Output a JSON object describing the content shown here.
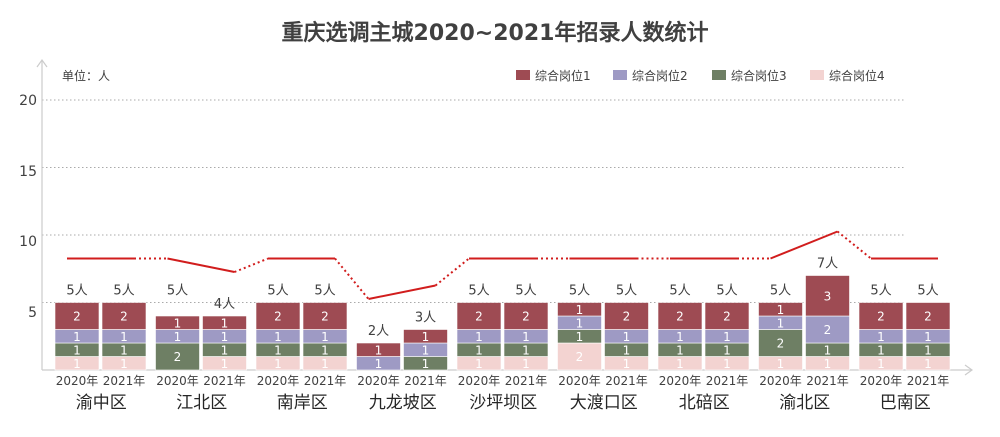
{
  "chart_data": {
    "type": "bar",
    "title": "重庆选调主城2020~2021年招录人数统计",
    "unit_label": "单位：人",
    "yticks": [
      "20",
      "15",
      "10",
      "5"
    ],
    "ylim": [
      0,
      20
    ],
    "grid": true,
    "legend_position": "top-right",
    "colors": {
      "综合岗位1": "#9e4b53",
      "综合岗位2": "#9e9ac4",
      "综合岗位3": "#6e7f64",
      "综合岗位4": "#f3d3d1",
      "line": "#d11d1d",
      "grid": "#aaaaaa"
    },
    "series_order": [
      "综合岗位1",
      "综合岗位2",
      "综合岗位3",
      "综合岗位4"
    ],
    "districts": [
      {
        "name": "渝中区",
        "bars": [
          {
            "year": "2020年",
            "total_label": "5人",
            "total": 5,
            "segments": {
              "综合岗位4": 1,
              "综合岗位3": 1,
              "综合岗位2": 1,
              "综合岗位1": 2
            }
          },
          {
            "year": "2021年",
            "total_label": "5人",
            "total": 5,
            "segments": {
              "综合岗位4": 1,
              "综合岗位3": 1,
              "综合岗位2": 1,
              "综合岗位1": 2
            }
          }
        ]
      },
      {
        "name": "江北区",
        "bars": [
          {
            "year": "2020年",
            "total_label": "5人",
            "total": 5,
            "segments": {
              "综合岗位4": 0,
              "综合岗位3": 2,
              "综合岗位2": 1,
              "综合岗位1": 1
            }
          },
          {
            "year": "2021年",
            "total_label": "4人",
            "total": 4,
            "segments": {
              "综合岗位4": 1,
              "综合岗位3": 1,
              "综合岗位2": 1,
              "综合岗位1": 1
            }
          }
        ]
      },
      {
        "name": "南岸区",
        "bars": [
          {
            "year": "2020年",
            "total_label": "5人",
            "total": 5,
            "segments": {
              "综合岗位4": 1,
              "综合岗位3": 1,
              "综合岗位2": 1,
              "综合岗位1": 2
            }
          },
          {
            "year": "2021年",
            "total_label": "5人",
            "total": 5,
            "segments": {
              "综合岗位4": 1,
              "综合岗位3": 1,
              "综合岗位2": 1,
              "综合岗位1": 2
            }
          }
        ]
      },
      {
        "name": "九龙坡区",
        "bars": [
          {
            "year": "2020年",
            "total_label": "2人",
            "total": 2,
            "segments": {
              "综合岗位4": 0,
              "综合岗位3": 0,
              "综合岗位2": 1,
              "综合岗位1": 1
            }
          },
          {
            "year": "2021年",
            "total_label": "3人",
            "total": 3,
            "segments": {
              "综合岗位4": 0,
              "综合岗位3": 1,
              "综合岗位2": 1,
              "综合岗位1": 1
            }
          }
        ]
      },
      {
        "name": "沙坪坝区",
        "bars": [
          {
            "year": "2020年",
            "total_label": "5人",
            "total": 5,
            "segments": {
              "综合岗位4": 1,
              "综合岗位3": 1,
              "综合岗位2": 1,
              "综合岗位1": 2
            }
          },
          {
            "year": "2021年",
            "total_label": "5人",
            "total": 5,
            "segments": {
              "综合岗位4": 1,
              "综合岗位3": 1,
              "综合岗位2": 1,
              "综合岗位1": 2
            }
          }
        ]
      },
      {
        "name": "大渡口区",
        "bars": [
          {
            "year": "2020年",
            "total_label": "5人",
            "total": 5,
            "segments": {
              "综合岗位4": 2,
              "综合岗位3": 1,
              "综合岗位2": 1,
              "综合岗位1": 1
            }
          },
          {
            "year": "2021年",
            "total_label": "5人",
            "total": 5,
            "segments": {
              "综合岗位4": 1,
              "综合岗位3": 1,
              "综合岗位2": 1,
              "综合岗位1": 2
            }
          }
        ]
      },
      {
        "name": "北碚区",
        "bars": [
          {
            "year": "2020年",
            "total_label": "5人",
            "total": 5,
            "segments": {
              "综合岗位4": 1,
              "综合岗位3": 1,
              "综合岗位2": 1,
              "综合岗位1": 2
            }
          },
          {
            "year": "2021年",
            "total_label": "5人",
            "total": 5,
            "segments": {
              "综合岗位4": 1,
              "综合岗位3": 1,
              "综合岗位2": 1,
              "综合岗位1": 2
            }
          }
        ]
      },
      {
        "name": "渝北区",
        "bars": [
          {
            "year": "2020年",
            "total_label": "5人",
            "total": 5,
            "segments": {
              "综合岗位4": 1,
              "综合岗位3": 2,
              "综合岗位2": 1,
              "综合岗位1": 1
            }
          },
          {
            "year": "2021年",
            "total_label": "7人",
            "total": 7,
            "segments": {
              "综合岗位4": 1,
              "综合岗位3": 1,
              "综合岗位2": 2,
              "综合岗位1": 3
            }
          }
        ]
      },
      {
        "name": "巴南区",
        "bars": [
          {
            "year": "2020年",
            "total_label": "5人",
            "total": 5,
            "segments": {
              "综合岗位4": 1,
              "综合岗位3": 1,
              "综合岗位2": 1,
              "综合岗位1": 2
            }
          },
          {
            "year": "2021年",
            "total_label": "5人",
            "total": 5,
            "segments": {
              "综合岗位4": 1,
              "综合岗位3": 1,
              "综合岗位2": 1,
              "综合岗位1": 2
            }
          }
        ]
      }
    ]
  }
}
